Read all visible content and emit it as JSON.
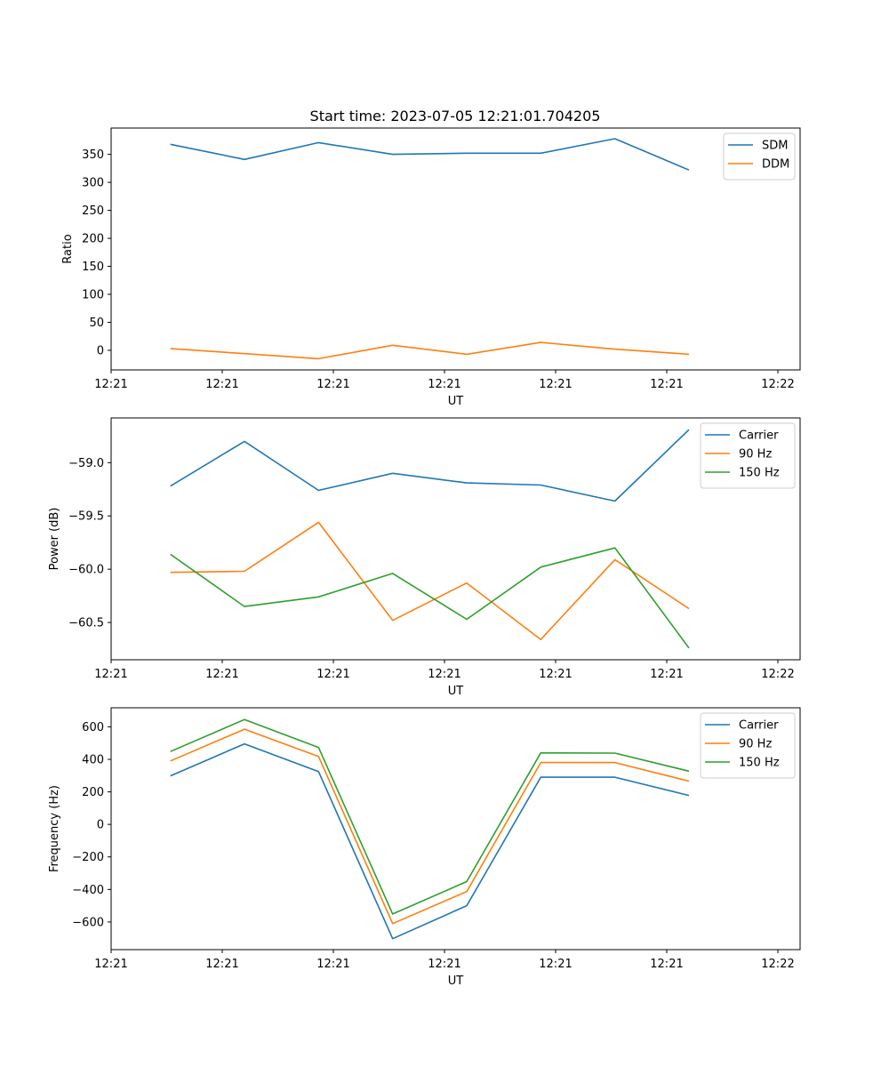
{
  "figure_title": "Start time: 2023-07-05 12:21:01.704205",
  "colors": {
    "blue": "#1f77b4",
    "orange": "#ff7f0e",
    "green": "#2ca02c"
  },
  "chart_data": [
    {
      "type": "line",
      "title": "Start time: 2023-07-05 12:21:01.704205",
      "xlabel": "UT",
      "ylabel": "Ratio",
      "x": [
        1,
        2,
        3,
        4,
        5,
        6,
        7,
        8
      ],
      "xlim": [
        0.2,
        9.5
      ],
      "xticks": [
        0.2,
        1.7,
        3.2,
        4.7,
        6.2,
        7.7,
        9.2
      ],
      "xtick_labels": [
        "12:21",
        "12:21",
        "12:21",
        "12:21",
        "12:21",
        "12:21",
        "12:22"
      ],
      "ylim": [
        -35,
        397
      ],
      "yticks": [
        0,
        50,
        100,
        150,
        200,
        250,
        300,
        350
      ],
      "ytick_labels": [
        "0",
        "50",
        "100",
        "150",
        "200",
        "250",
        "300",
        "350"
      ],
      "legend": "top-right",
      "series": [
        {
          "name": "SDM",
          "color": "#1f77b4",
          "values": [
            368,
            341,
            371,
            350,
            352,
            352,
            378,
            322
          ]
        },
        {
          "name": "DDM",
          "color": "#ff7f0e",
          "values": [
            3,
            -6,
            -15,
            9,
            -7,
            14,
            2,
            -7
          ]
        }
      ]
    },
    {
      "type": "line",
      "xlabel": "UT",
      "ylabel": "Power (dB)",
      "x": [
        1,
        2,
        3,
        4,
        5,
        6,
        7,
        8
      ],
      "xlim": [
        0.2,
        9.5
      ],
      "xticks": [
        0.2,
        1.7,
        3.2,
        4.7,
        6.2,
        7.7,
        9.2
      ],
      "xtick_labels": [
        "12:21",
        "12:21",
        "12:21",
        "12:21",
        "12:21",
        "12:21",
        "12:22"
      ],
      "ylim": [
        -60.85,
        -58.58
      ],
      "yticks": [
        -59.0,
        -59.5,
        -60.0,
        -60.5
      ],
      "ytick_labels": [
        "−59.0",
        "−59.5",
        "−60.0",
        "−60.5"
      ],
      "legend": "top-right",
      "series": [
        {
          "name": "Carrier",
          "color": "#1f77b4",
          "values": [
            -59.22,
            -58.8,
            -59.26,
            -59.1,
            -59.19,
            -59.21,
            -59.36,
            -58.69
          ]
        },
        {
          "name": "90 Hz",
          "color": "#ff7f0e",
          "values": [
            -60.03,
            -60.02,
            -59.56,
            -60.48,
            -60.13,
            -60.66,
            -59.91,
            -60.37
          ]
        },
        {
          "name": "150 Hz",
          "color": "#2ca02c",
          "values": [
            -59.86,
            -60.35,
            -60.26,
            -60.04,
            -60.47,
            -59.98,
            -59.8,
            -60.74
          ]
        }
      ]
    },
    {
      "type": "line",
      "xlabel": "UT",
      "ylabel": "Frequency (Hz)",
      "x": [
        1,
        2,
        3,
        4,
        5,
        6,
        7,
        8
      ],
      "xlim": [
        0.2,
        9.5
      ],
      "xticks": [
        0.2,
        1.7,
        3.2,
        4.7,
        6.2,
        7.7,
        9.2
      ],
      "xtick_labels": [
        "12:21",
        "12:21",
        "12:21",
        "12:21",
        "12:21",
        "12:21",
        "12:22"
      ],
      "ylim": [
        -770,
        717
      ],
      "yticks": [
        600,
        400,
        200,
        0,
        -200,
        -400,
        -600
      ],
      "ytick_labels": [
        "600",
        "400",
        "200",
        "0",
        "−200",
        "−400",
        "−600"
      ],
      "legend": "top-right",
      "series": [
        {
          "name": "Carrier",
          "color": "#1f77b4",
          "values": [
            298,
            495,
            325,
            -703,
            -500,
            290,
            290,
            178
          ]
        },
        {
          "name": "90 Hz",
          "color": "#ff7f0e",
          "values": [
            390,
            585,
            418,
            -610,
            -413,
            380,
            380,
            266
          ]
        },
        {
          "name": "150 Hz",
          "color": "#2ca02c",
          "values": [
            448,
            645,
            473,
            -551,
            -352,
            440,
            438,
            327
          ]
        }
      ]
    }
  ]
}
